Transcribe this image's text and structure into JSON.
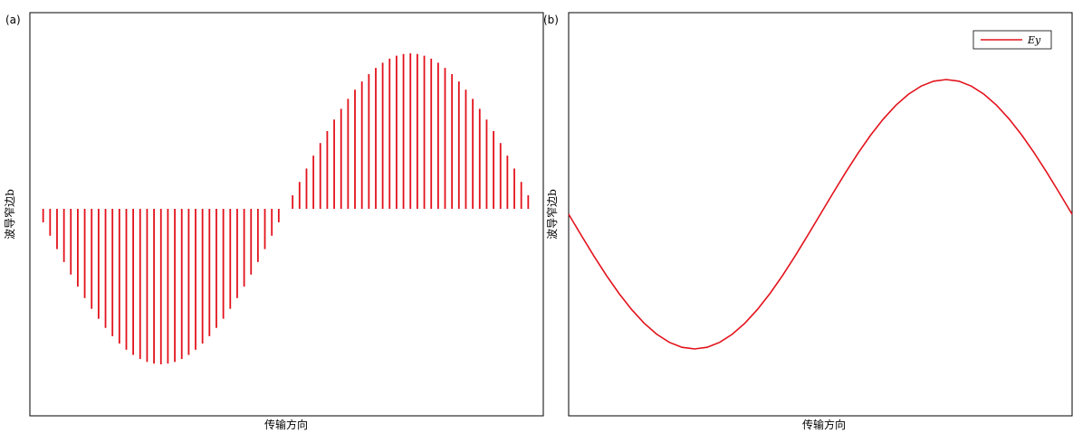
{
  "colors": {
    "series": "#e3121b",
    "axes": "#000000",
    "background": "#ffffff"
  },
  "chart_data": [
    {
      "panel_label": "(a)",
      "type": "bar",
      "title": "",
      "xlabel": "传输方向",
      "ylabel": "波导窄边b",
      "grid": false,
      "legend": null,
      "xlim": [
        0,
        1
      ],
      "ylim": [
        -1.3,
        1.3
      ],
      "series": [
        {
          "name": "",
          "x": [
            0.0,
            0.0139,
            0.0278,
            0.0417,
            0.0556,
            0.0694,
            0.0833,
            0.0972,
            0.1111,
            0.125,
            0.1389,
            0.1528,
            0.1667,
            0.1806,
            0.1944,
            0.2083,
            0.2222,
            0.2361,
            0.25,
            0.2639,
            0.2778,
            0.2917,
            0.3056,
            0.3194,
            0.3333,
            0.3472,
            0.3611,
            0.375,
            0.3889,
            0.4028,
            0.4167,
            0.4306,
            0.4444,
            0.4583,
            0.4722,
            0.4861,
            0.5,
            0.5139,
            0.5278,
            0.5417,
            0.5556,
            0.5694,
            0.5833,
            0.5972,
            0.6111,
            0.625,
            0.6389,
            0.6528,
            0.6667,
            0.6806,
            0.6944,
            0.7083,
            0.7222,
            0.7361,
            0.75,
            0.7639,
            0.7778,
            0.7917,
            0.8056,
            0.8194,
            0.8333,
            0.8472,
            0.8611,
            0.875,
            0.8889,
            0.9028,
            0.9167,
            0.9306,
            0.9444,
            0.9583,
            0.9722,
            0.9861,
            1.0
          ],
          "values": [
            -0.0,
            -0.087,
            -0.173,
            -0.259,
            -0.342,
            -0.423,
            -0.5,
            -0.574,
            -0.643,
            -0.707,
            -0.766,
            -0.819,
            -0.866,
            -0.906,
            -0.94,
            -0.966,
            -0.985,
            -0.996,
            -1.0,
            -0.996,
            -0.985,
            -0.966,
            -0.94,
            -0.906,
            -0.866,
            -0.819,
            -0.766,
            -0.707,
            -0.643,
            -0.574,
            -0.5,
            -0.423,
            -0.342,
            -0.259,
            -0.173,
            -0.087,
            0.0,
            0.087,
            0.173,
            0.259,
            0.342,
            0.423,
            0.5,
            0.574,
            0.643,
            0.707,
            0.766,
            0.819,
            0.866,
            0.906,
            0.94,
            0.966,
            0.985,
            0.996,
            1.0,
            0.996,
            0.985,
            0.966,
            0.94,
            0.906,
            0.866,
            0.819,
            0.766,
            0.707,
            0.643,
            0.574,
            0.5,
            0.423,
            0.342,
            0.259,
            0.173,
            0.087,
            0.0
          ]
        }
      ]
    },
    {
      "panel_label": "(b)",
      "type": "line",
      "title": "",
      "xlabel": "传输方向",
      "ylabel": "波导窄边b",
      "grid": false,
      "legend": "top-right",
      "xlim": [
        0,
        1
      ],
      "ylim": [
        -1.3,
        1.3
      ],
      "series": [
        {
          "name": "Ey",
          "x": [
            0.0,
            0.025,
            0.05,
            0.075,
            0.1,
            0.125,
            0.15,
            0.175,
            0.2,
            0.225,
            0.25,
            0.275,
            0.3,
            0.325,
            0.35,
            0.375,
            0.4,
            0.425,
            0.45,
            0.475,
            0.5,
            0.525,
            0.55,
            0.575,
            0.6,
            0.625,
            0.65,
            0.675,
            0.7,
            0.725,
            0.75,
            0.775,
            0.8,
            0.825,
            0.85,
            0.875,
            0.9,
            0.925,
            0.95,
            0.975,
            1.0
          ],
          "values": [
            0.0,
            -0.156,
            -0.309,
            -0.454,
            -0.588,
            -0.707,
            -0.809,
            -0.891,
            -0.951,
            -0.988,
            -1.0,
            -0.988,
            -0.951,
            -0.891,
            -0.809,
            -0.707,
            -0.588,
            -0.454,
            -0.309,
            -0.156,
            0.0,
            0.156,
            0.309,
            0.454,
            0.588,
            0.707,
            0.809,
            0.891,
            0.951,
            0.988,
            1.0,
            0.988,
            0.951,
            0.891,
            0.809,
            0.707,
            0.588,
            0.454,
            0.309,
            0.156,
            0.0
          ]
        }
      ]
    }
  ]
}
